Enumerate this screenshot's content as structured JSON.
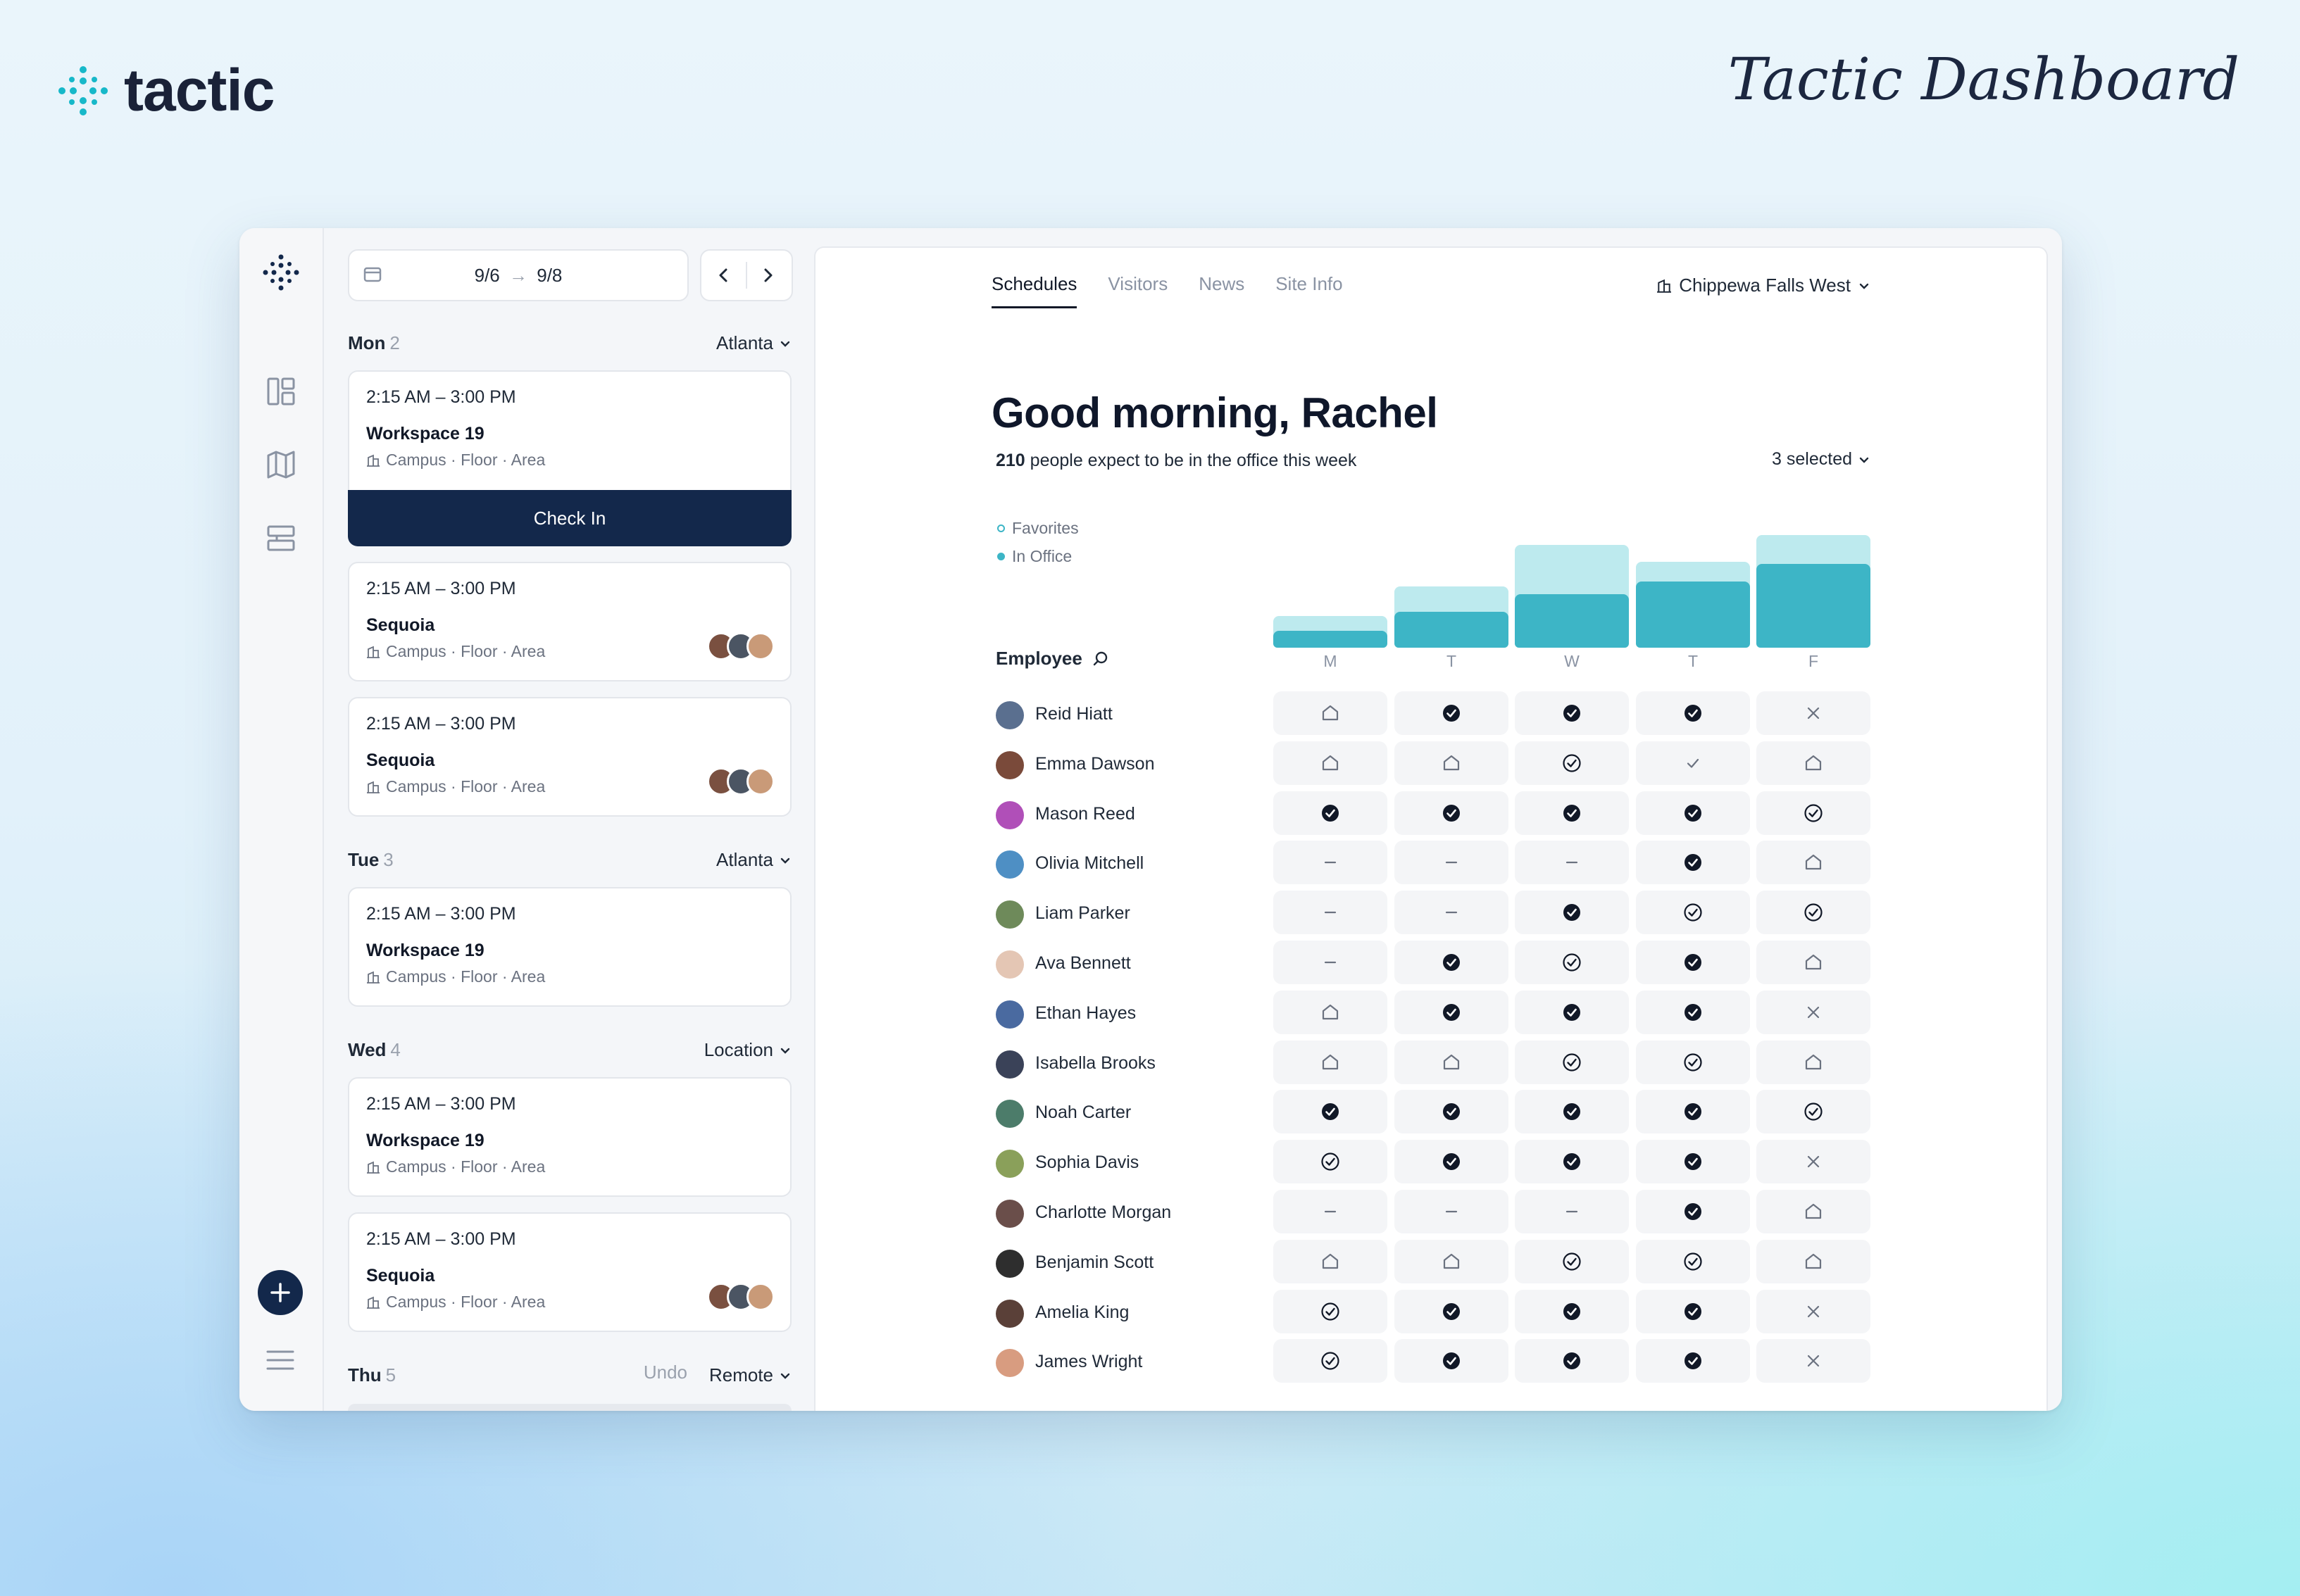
{
  "brand": {
    "name": "tactic",
    "title": "Tactic Dashboard"
  },
  "colors": {
    "navy": "#13284b",
    "teal": "#3db5c6",
    "teal_light": "#bdeaee"
  },
  "schedule": {
    "range_start": "9/6",
    "range_end": "9/8",
    "days": [
      {
        "name": "Mon",
        "count": "2",
        "location": "Atlanta"
      },
      {
        "name": "Tue",
        "count": "3",
        "location": "Atlanta"
      },
      {
        "name": "Wed",
        "count": "4",
        "location": "Location"
      },
      {
        "name": "Thu",
        "count": "5",
        "location": "Remote",
        "undo": "Undo"
      }
    ],
    "cards": [
      {
        "time": "2:15 AM – 3:00 PM",
        "name": "Workspace 19",
        "meta": "Campus · Floor · Area"
      },
      {
        "time": "2:15 AM – 3:00 PM",
        "name": "Sequoia",
        "meta": "Campus · Floor · Area"
      },
      {
        "time": "2:15 AM – 3:00 PM",
        "name": "Sequoia",
        "meta": "Campus · Floor · Area"
      },
      {
        "time": "2:15 AM – 3:00 PM",
        "name": "Workspace 19",
        "meta": "Campus · Floor · Area"
      },
      {
        "time": "2:15 AM – 3:00 PM",
        "name": "Workspace 19",
        "meta": "Campus · Floor · Area"
      },
      {
        "time": "2:15 AM – 3:00 PM",
        "name": "Sequoia",
        "meta": "Campus · Floor · Area"
      }
    ],
    "check_in_label": "Check In"
  },
  "main": {
    "tabs": [
      "Schedules",
      "Visitors",
      "News",
      "Site Info"
    ],
    "site": "Chippewa Falls West",
    "greeting": "Good morning, Rachel",
    "count": "210",
    "count_text": " people expect to be in the office this week",
    "selected": "3 selected",
    "legend": [
      "Favorites",
      "In Office"
    ],
    "employee_header": "Employee",
    "day_letters": [
      "M",
      "T",
      "W",
      "T",
      "F"
    ]
  },
  "chart_data": {
    "type": "bar",
    "categories": [
      "M",
      "T",
      "W",
      "T",
      "F"
    ],
    "series": [
      {
        "name": "In Office",
        "values": [
          24,
          50,
          75,
          93,
          118
        ]
      },
      {
        "name": "Favorites",
        "values": [
          44,
          86,
          144,
          120,
          158
        ]
      }
    ]
  },
  "employees": [
    {
      "name": "Reid Hiatt",
      "status": [
        "home",
        "filled",
        "filled",
        "filled",
        "x"
      ],
      "color": "#5a6f8f"
    },
    {
      "name": "Emma Dawson",
      "status": [
        "home",
        "home",
        "outline",
        "check",
        "home"
      ],
      "color": "#7a4a3a"
    },
    {
      "name": "Mason Reed",
      "status": [
        "filled",
        "filled",
        "filled",
        "filled",
        "outline"
      ],
      "color": "#b04fb8"
    },
    {
      "name": "Olivia Mitchell",
      "status": [
        "dash",
        "dash",
        "dash",
        "filled",
        "home"
      ],
      "color": "#4e8fc4"
    },
    {
      "name": "Liam Parker",
      "status": [
        "dash",
        "dash",
        "filled",
        "outline",
        "outline"
      ],
      "color": "#6e8a5a"
    },
    {
      "name": "Ava Bennett",
      "status": [
        "dash",
        "filled",
        "outline",
        "filled",
        "home"
      ],
      "color": "#e4c6b4"
    },
    {
      "name": "Ethan Hayes",
      "status": [
        "home",
        "filled",
        "filled",
        "filled",
        "x"
      ],
      "color": "#4a6aa0"
    },
    {
      "name": "Isabella Brooks",
      "status": [
        "home",
        "home",
        "outline",
        "outline",
        "home"
      ],
      "color": "#3a4258"
    },
    {
      "name": "Noah Carter",
      "status": [
        "filled",
        "filled",
        "filled",
        "filled",
        "outline"
      ],
      "color": "#4c7c6a"
    },
    {
      "name": "Sophia Davis",
      "status": [
        "outline",
        "filled",
        "filled",
        "filled",
        "x"
      ],
      "color": "#8aa05a"
    },
    {
      "name": "Charlotte Morgan",
      "status": [
        "dash",
        "dash",
        "dash",
        "filled",
        "home"
      ],
      "color": "#6a4e4a"
    },
    {
      "name": "Benjamin Scott",
      "status": [
        "home",
        "home",
        "outline",
        "outline",
        "home"
      ],
      "color": "#2e2e2e"
    },
    {
      "name": "Amelia King",
      "status": [
        "outline",
        "filled",
        "filled",
        "filled",
        "x"
      ],
      "color": "#5a4038"
    },
    {
      "name": "James Wright",
      "status": [
        "outline",
        "filled",
        "filled",
        "filled",
        "x"
      ],
      "color": "#d89c80"
    }
  ]
}
